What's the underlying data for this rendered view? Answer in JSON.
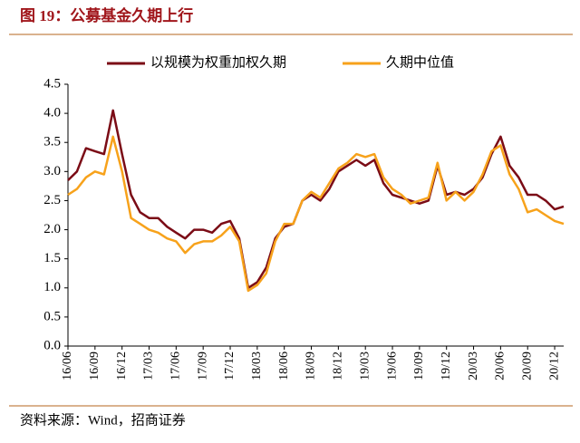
{
  "chart_data": {
    "type": "line",
    "title": "图 19：公募基金久期上行",
    "source": "资料来源：Wind，招商证券",
    "categories": [
      "16/06",
      null,
      null,
      "16/09",
      null,
      null,
      "16/12",
      null,
      null,
      "17/03",
      null,
      null,
      "17/06",
      null,
      null,
      "17/09",
      null,
      null,
      "17/12",
      null,
      null,
      "18/03",
      null,
      null,
      "18/06",
      null,
      null,
      "18/09",
      null,
      null,
      "18/12",
      null,
      null,
      "19/03",
      null,
      null,
      "19/06",
      null,
      null,
      "19/09",
      null,
      null,
      "19/12",
      null,
      null,
      "20/03",
      null,
      null,
      "20/06",
      null,
      null,
      "20/09",
      null,
      null,
      "20/12",
      null
    ],
    "series": [
      {
        "name": "以规模为权重加权久期",
        "color": "#7b0c16",
        "values": [
          2.85,
          3.0,
          3.4,
          3.35,
          3.3,
          4.05,
          3.3,
          2.6,
          2.3,
          2.2,
          2.2,
          2.05,
          1.95,
          1.85,
          2.0,
          2.0,
          1.95,
          2.1,
          2.15,
          1.85,
          1.0,
          1.1,
          1.35,
          1.85,
          2.05,
          2.1,
          2.5,
          2.6,
          2.5,
          2.7,
          3.0,
          3.1,
          3.2,
          3.1,
          3.2,
          2.8,
          2.6,
          2.55,
          2.5,
          2.45,
          2.5,
          3.1,
          2.6,
          2.65,
          2.6,
          2.7,
          2.9,
          3.3,
          3.6,
          3.1,
          2.9,
          2.6,
          2.6,
          2.5,
          2.35,
          2.4
        ]
      },
      {
        "name": "久期中位值",
        "color": "#f7a21b",
        "values": [
          2.6,
          2.7,
          2.9,
          3.0,
          2.95,
          3.6,
          3.0,
          2.2,
          2.1,
          2.0,
          1.95,
          1.85,
          1.8,
          1.6,
          1.75,
          1.8,
          1.8,
          1.9,
          2.05,
          1.8,
          0.95,
          1.05,
          1.25,
          1.8,
          2.1,
          2.1,
          2.5,
          2.65,
          2.55,
          2.8,
          3.05,
          3.15,
          3.3,
          3.25,
          3.3,
          2.9,
          2.7,
          2.6,
          2.45,
          2.5,
          2.55,
          3.15,
          2.5,
          2.65,
          2.5,
          2.65,
          2.95,
          3.35,
          3.45,
          2.95,
          2.7,
          2.3,
          2.35,
          2.25,
          2.15,
          2.1
        ]
      }
    ],
    "ylim": [
      0,
      4.5
    ],
    "yticks": [
      {
        "value": 0,
        "label": "0.0"
      },
      {
        "value": 0.5,
        "label": "0.5"
      },
      {
        "value": 1,
        "label": "1.0"
      },
      {
        "value": 1.5,
        "label": "1.5"
      },
      {
        "value": 2,
        "label": "2.0"
      },
      {
        "value": 2.5,
        "label": "2.5"
      },
      {
        "value": 3,
        "label": "3.0"
      },
      {
        "value": 3.5,
        "label": "3.5"
      },
      {
        "value": 4,
        "label": "4.0"
      },
      {
        "value": 4.5,
        "label": "4.5"
      }
    ],
    "legend": "top"
  }
}
